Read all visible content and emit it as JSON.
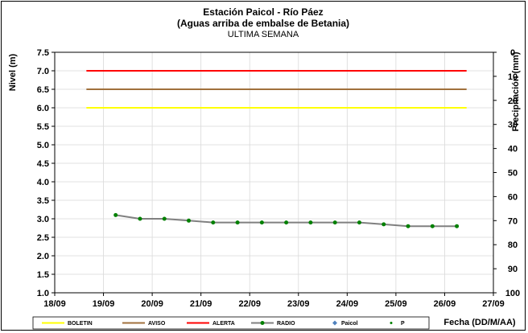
{
  "chart_data": {
    "type": "line",
    "title": "Estación Paicol  - Río Páez",
    "subtitle": "(Aguas arriba de embalse de Betania)",
    "subtitle2": "ULTIMA SEMANA",
    "xlabel": "Fecha  (DD/M/AA)",
    "ylabel": "Nivel  (m)",
    "y2label": "Precipitación (mm)",
    "x_ticks": [
      "18/09",
      "19/09",
      "20/09",
      "21/09",
      "22/09",
      "23/09",
      "24/09",
      "25/09",
      "26/09",
      "27/09"
    ],
    "y_ticks": [
      "1.0",
      "1.5",
      "2.0",
      "2.5",
      "3.0",
      "3.5",
      "4.0",
      "4.5",
      "5.0",
      "5.5",
      "6.0",
      "6.5",
      "7.0",
      "7.5"
    ],
    "y2_ticks": [
      "0",
      "10",
      "20",
      "30",
      "40",
      "50",
      "60",
      "70",
      "80",
      "90",
      "100"
    ],
    "xlim": [
      0,
      9
    ],
    "ylim": [
      1.0,
      7.5
    ],
    "y2lim": [
      0,
      100
    ],
    "y2_inverted": true,
    "grid": true,
    "legend_position": "bottom",
    "thresholds": [
      {
        "name": "BOLETIN",
        "value": 6.0,
        "color": "#ffff00",
        "x_range": [
          0.65,
          8.45
        ]
      },
      {
        "name": "AVISO",
        "value": 6.5,
        "color": "#a0703c",
        "x_range": [
          0.65,
          8.45
        ]
      },
      {
        "name": "ALERTA",
        "value": 7.0,
        "color": "#ff0000",
        "x_range": [
          0.65,
          8.45
        ]
      }
    ],
    "series": [
      {
        "name": "RADIO",
        "color": "#808080",
        "marker_color": "#008000",
        "x": [
          1.25,
          1.75,
          2.25,
          2.75,
          3.25,
          3.75,
          4.25,
          4.75,
          5.25,
          5.75,
          6.25,
          6.75,
          7.25,
          7.75,
          8.25
        ],
        "y": [
          3.1,
          3.0,
          3.0,
          2.95,
          2.9,
          2.9,
          2.9,
          2.9,
          2.9,
          2.9,
          2.9,
          2.85,
          2.8,
          2.8,
          2.8
        ]
      },
      {
        "name": "Paicol",
        "color": "#4f81bd",
        "x": [],
        "y": []
      },
      {
        "name": "P",
        "color": "#008000",
        "x": [],
        "y": []
      }
    ]
  }
}
